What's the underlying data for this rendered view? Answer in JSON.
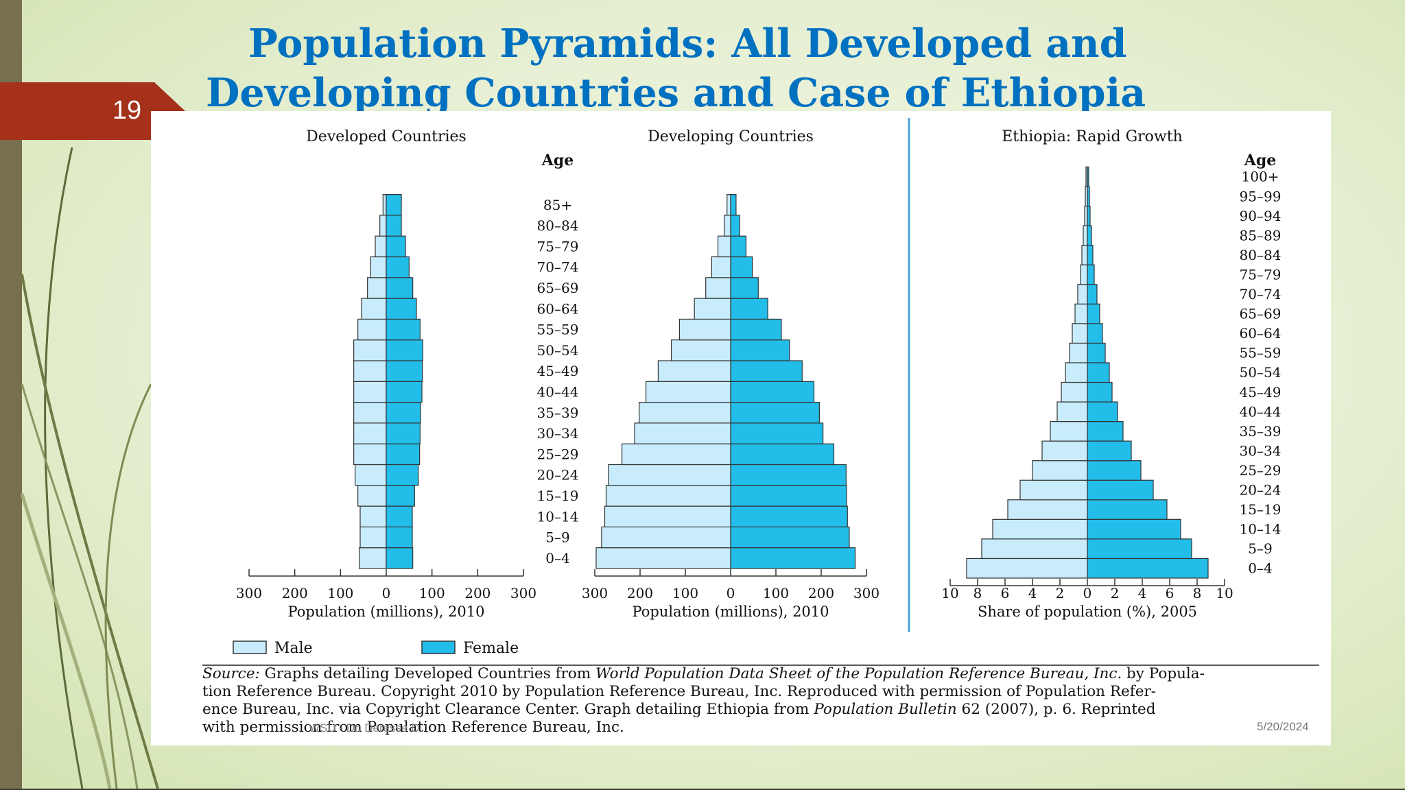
{
  "slide": {
    "number": "19",
    "title_line1": "Population Pyramids: All Developed and",
    "title_line2": "Developing Countries and Case of Ethiopia",
    "footer_left": "WSU - Dr. Deresse D.",
    "footer_date": "5/20/2024",
    "colors": {
      "accent_tab": "#a5311a",
      "title": "#0070c0",
      "strip": "#76704f"
    }
  },
  "source": {
    "label": "Source:",
    "t1": " Graphs detailing Developed Countries from ",
    "i1": "World Population Data Sheet of the Population Reference Bureau, Inc.",
    "t2": " by Popula-",
    "line2": "tion Reference Bureau. Copyright 2010 by Population Reference Bureau, Inc. Reproduced with permission of Population Refer-",
    "t3": "ence Bureau, Inc. via Copyright Clearance Center. Graph detailing Ethiopia from ",
    "i2": "Population Bulletin",
    "t4": " 62 (2007), p. 6. Reprinted",
    "line4": "with permission from Population Reference Bureau, Inc."
  },
  "chart_data": [
    {
      "type": "bar",
      "orientation": "horizontal-pyramid",
      "title": "Developed Countries",
      "xlabel": "Population (millions), 2010",
      "xticks": [
        "300",
        "200",
        "100",
        "0",
        "100",
        "200",
        "300"
      ],
      "xlim": [
        -300,
        300
      ],
      "categories": [
        "0–4",
        "5–9",
        "10–14",
        "15–19",
        "20–24",
        "25–29",
        "30–34",
        "35–39",
        "40–44",
        "45–49",
        "50–54",
        "55–59",
        "60–64",
        "65–69",
        "70–74",
        "75–79",
        "80–84",
        "85+"
      ],
      "series": [
        {
          "name": "Male",
          "color": "#c8ecfb",
          "values": [
            59,
            57,
            57,
            62,
            68,
            71,
            71,
            71,
            71,
            71,
            71,
            62,
            54,
            41,
            34,
            24,
            14,
            7
          ]
        },
        {
          "name": "Female",
          "color": "#23bde9",
          "values": [
            58,
            57,
            57,
            62,
            70,
            73,
            74,
            75,
            78,
            79,
            80,
            74,
            66,
            58,
            50,
            42,
            33,
            33
          ]
        }
      ]
    },
    {
      "type": "bar",
      "orientation": "horizontal-pyramid",
      "title": "Developing Countries",
      "ylabel": "Age",
      "xlabel": "Population (millions), 2010",
      "xticks": [
        "300",
        "200",
        "100",
        "0",
        "100",
        "200",
        "300"
      ],
      "xlim": [
        -300,
        300
      ],
      "categories": [
        "0–4",
        "5–9",
        "10–14",
        "15–19",
        "20–24",
        "25–29",
        "30–34",
        "35–39",
        "40–44",
        "45–49",
        "50–54",
        "55–59",
        "60–64",
        "65–69",
        "70–74",
        "75–79",
        "80–84",
        "85+"
      ],
      "series": [
        {
          "name": "Male",
          "color": "#c8ecfb",
          "values": [
            297,
            285,
            278,
            275,
            270,
            240,
            212,
            202,
            187,
            160,
            131,
            113,
            80,
            55,
            42,
            28,
            14,
            8
          ]
        },
        {
          "name": "Female",
          "color": "#23bde9",
          "values": [
            275,
            262,
            258,
            256,
            255,
            228,
            204,
            196,
            184,
            158,
            130,
            112,
            82,
            61,
            48,
            34,
            20,
            12
          ]
        }
      ]
    },
    {
      "type": "bar",
      "orientation": "horizontal-pyramid",
      "title": "Ethiopia: Rapid Growth",
      "ylabel": "Age",
      "xlabel": "Share of population (%), 2005",
      "xticks": [
        "10",
        "8",
        "6",
        "4",
        "2",
        "0",
        "2",
        "4",
        "6",
        "8",
        "10"
      ],
      "xlim": [
        -10,
        10
      ],
      "categories": [
        "0–4",
        "5–9",
        "10–14",
        "15–19",
        "20–24",
        "25–29",
        "30–34",
        "35–39",
        "40–44",
        "45–49",
        "50–54",
        "55–59",
        "60–64",
        "65–69",
        "70–74",
        "75–79",
        "80–84",
        "85–89",
        "90–94",
        "95–99",
        "100+"
      ],
      "series": [
        {
          "name": "Male",
          "color": "#c8ecfb",
          "values": [
            8.8,
            7.7,
            6.9,
            5.8,
            4.9,
            4.0,
            3.3,
            2.7,
            2.2,
            1.9,
            1.6,
            1.3,
            1.1,
            0.9,
            0.7,
            0.5,
            0.4,
            0.3,
            0.2,
            0.15,
            0.1
          ]
        },
        {
          "name": "Female",
          "color": "#23bde9",
          "values": [
            8.8,
            7.6,
            6.8,
            5.8,
            4.8,
            3.9,
            3.2,
            2.6,
            2.2,
            1.8,
            1.6,
            1.3,
            1.1,
            0.9,
            0.7,
            0.5,
            0.4,
            0.3,
            0.2,
            0.15,
            0.1
          ]
        }
      ]
    }
  ],
  "legend": {
    "male": "Male",
    "female": "Female",
    "placement": "bottom-left"
  }
}
